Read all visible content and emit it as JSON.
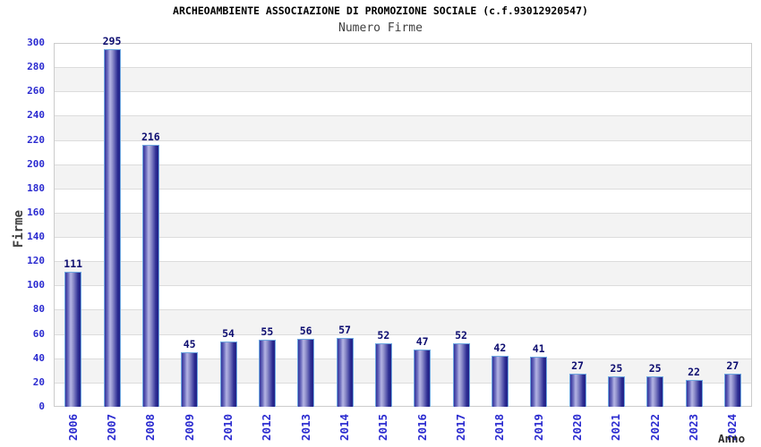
{
  "chart_data": {
    "type": "bar",
    "title": "ARCHEOAMBIENTE ASSOCIAZIONE DI PROMOZIONE SOCIALE (c.f.93012920547)",
    "subtitle": "Numero Firme",
    "categories": [
      "2006",
      "2007",
      "2008",
      "2009",
      "2010",
      "2012",
      "2013",
      "2014",
      "2015",
      "2016",
      "2017",
      "2018",
      "2019",
      "2020",
      "2021",
      "2022",
      "2023",
      "2024"
    ],
    "values": [
      111,
      295,
      216,
      45,
      54,
      55,
      56,
      57,
      52,
      47,
      52,
      42,
      41,
      27,
      25,
      25,
      22,
      27
    ],
    "xlabel": "Anno",
    "ylabel": "Firme",
    "ylim": [
      0,
      300
    ],
    "ytick_step": 20,
    "grid": true,
    "legend": false,
    "band_fill_alternating": true,
    "colors": {
      "tick_label": "#2b2bd0",
      "value_label": "#0d0d70",
      "axis_title": "#3f3f3f",
      "title": "#000000",
      "bar_dark": "#222288",
      "bar_light": "#b4b4e4",
      "bar_border": "#6fa8e0",
      "gridline": "#dcdcdc",
      "band": "#f3f3f3",
      "plot_border": "#cccccc",
      "background": "#ffffff"
    }
  }
}
